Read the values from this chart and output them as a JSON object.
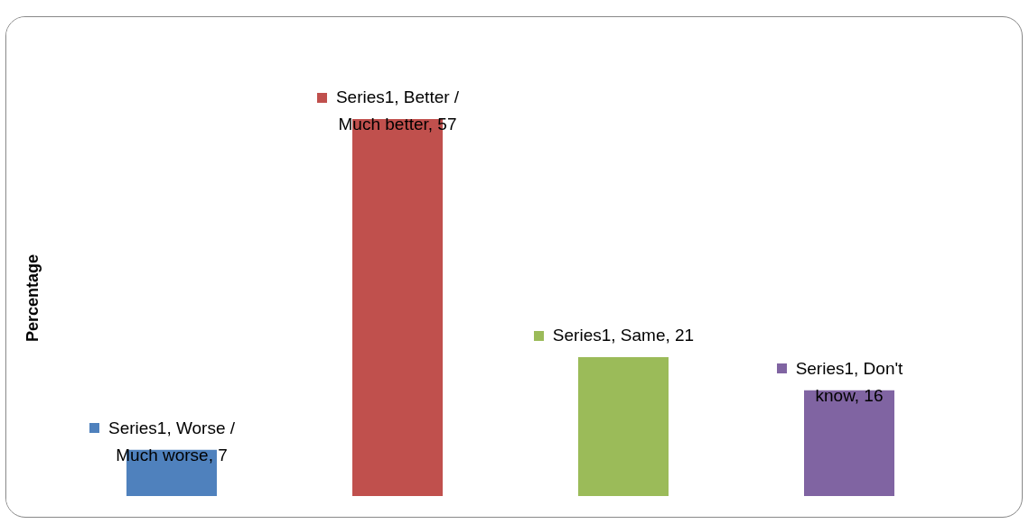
{
  "chart_data": {
    "type": "bar",
    "ylabel": "Percentage",
    "categories": [
      null,
      null,
      null,
      null
    ],
    "values": [
      7,
      57,
      21,
      16
    ],
    "colors": [
      "#4f81bd",
      "#c0504d",
      "#9bbb59",
      "#8064a2"
    ],
    "value_labels": [
      "Series1, Worse / Much worse,  7",
      "Series1, Better / Much better,  57",
      "Series1, Same,  21",
      "Series1, Don't know,  16"
    ],
    "tick_labels": false,
    "grid": false
  }
}
